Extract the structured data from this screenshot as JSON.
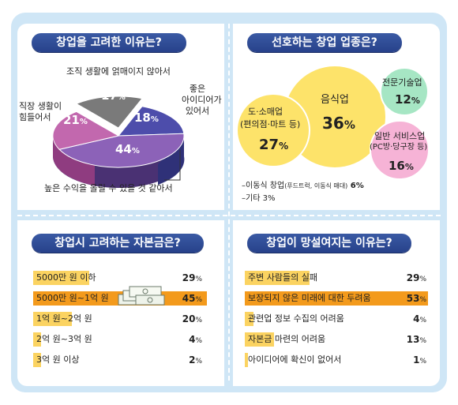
{
  "panels": {
    "p1": {
      "title": "창업을 고려한 이유는?"
    },
    "p2": {
      "title": "선호하는 창업 업종은?"
    },
    "p3": {
      "title": "창업시 고려하는 자본금은?"
    },
    "p4": {
      "title": "창업이 망설여지는 이유는?"
    }
  },
  "chart_data": [
    {
      "type": "pie",
      "title": "창업을 고려한 이유는?",
      "slices": [
        {
          "label": "조직 생활에 얽매이지 않아서",
          "value": 17,
          "color": "#7a7a7a"
        },
        {
          "label": "좋은 아이디어가 있어서",
          "value": 18,
          "color": "#4d4dab"
        },
        {
          "label": "높은 수익을 올릴 수 있을 것 같아서",
          "value": 44,
          "color": "#8c62b8"
        },
        {
          "label": "직장 생활이 힘들어서",
          "value": 21,
          "color": "#c268ae"
        }
      ]
    },
    {
      "type": "bubble",
      "title": "선호하는 창업 업종은?",
      "items": [
        {
          "label": "음식업",
          "value": 36,
          "color": "#fde36a"
        },
        {
          "label": "도·소매업",
          "sublabel": "(편의점·마트 등)",
          "value": 27,
          "color": "#fde36a"
        },
        {
          "label": "전문기술업",
          "value": 12,
          "color": "#a6e6c4"
        },
        {
          "label": "일반 서비스업",
          "sublabel": "(PC방·당구장 등)",
          "value": 16,
          "color": "#f6b3d6"
        },
        {
          "label": "이동식 창업",
          "sublabel": "(푸드트럭, 이동식 매대)",
          "value": 6
        },
        {
          "label": "기타",
          "value": 3
        }
      ]
    },
    {
      "type": "bar",
      "title": "창업시 고려하는 자본금은?",
      "categories": [
        "5000만 원 이하",
        "5000만 원~1억 원",
        "1억 원~2억 원",
        "2억 원~3억 원",
        "3억 원 이상"
      ],
      "values": [
        29,
        45,
        20,
        4,
        2
      ],
      "unit": "%"
    },
    {
      "type": "bar",
      "title": "창업이 망설여지는 이유는?",
      "categories": [
        "주변 사람들의 실패",
        "보장되지 않은 미래에 대한 두려움",
        "관련업 정보 수집의 어려움",
        "자본금 마련의 어려움",
        "아이디어에 확신이 없어서"
      ],
      "values": [
        29,
        53,
        4,
        13,
        1
      ],
      "unit": "%"
    }
  ],
  "labels": {
    "pie_top": "조직 생활에 얽매이지 않아서",
    "pie_right_1": "좋은",
    "pie_right_2": "아이디어가",
    "pie_right_3": "있어서",
    "pie_left_1": "직장 생활이",
    "pie_left_2": "힘들어서",
    "pie_bottom": "높은 수익을 올릴 수 있을 것 같아서",
    "note1_a": "–이동식 창업",
    "note1_b": "(푸드트럭, 이동식 매대)",
    "note1_c": " 6%",
    "note2": "–기타 3%"
  }
}
